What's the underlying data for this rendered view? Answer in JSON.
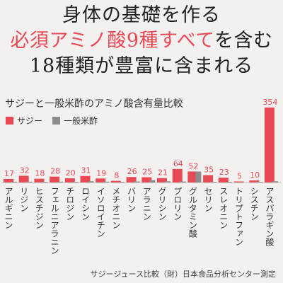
{
  "headline": {
    "line1": "身体の基礎を作る",
    "line2_red": "必須アミノ酸9種すべて",
    "line2_rest": "を含む",
    "line3": "18種類が豊富に含まれる"
  },
  "colors": {
    "sajii": "#e84a55",
    "vinegar": "#8c8c8c",
    "accent_text": "#e84a55"
  },
  "chart_data": {
    "type": "bar",
    "title": "サジーと一般米酢のアミノ酸含有量比較",
    "legend_position": "top-left",
    "grid": false,
    "ylim": [
      0,
      354
    ],
    "categories": [
      "アルギニン",
      "リジン",
      "ヒスチジン",
      "フェルニアラニン",
      "チロジン",
      "ロイシン",
      "イソロイチン",
      "メチオニン",
      "バリン",
      "アラニン",
      "グリシン",
      "プロリン",
      "グルタミン酸",
      "セリン",
      "スレオニン",
      "トリプトファン",
      "シスチン",
      "アスパラギン酸"
    ],
    "series": [
      {
        "name": "サジー",
        "color": "#e84a55",
        "values": [
          17,
          32,
          18,
          28,
          20,
          31,
          19,
          8,
          26,
          25,
          21,
          64,
          52,
          35,
          23,
          5,
          10,
          354
        ]
      },
      {
        "name": "一般米酢",
        "color": "#8c8c8c",
        "values": [
          4,
          4,
          2,
          4,
          3,
          6,
          4,
          2,
          5,
          11,
          6,
          5,
          52,
          3,
          2,
          0,
          1,
          6
        ]
      }
    ],
    "data_labels": [
      "17",
      "32",
      "18",
      "28",
      "20",
      "31",
      "19",
      "8",
      "26",
      "25",
      "21",
      "64",
      "52",
      "35",
      "23",
      "5",
      "10",
      "354"
    ]
  },
  "footer": "サジージュース比較（財）日本食品分析センター測定"
}
